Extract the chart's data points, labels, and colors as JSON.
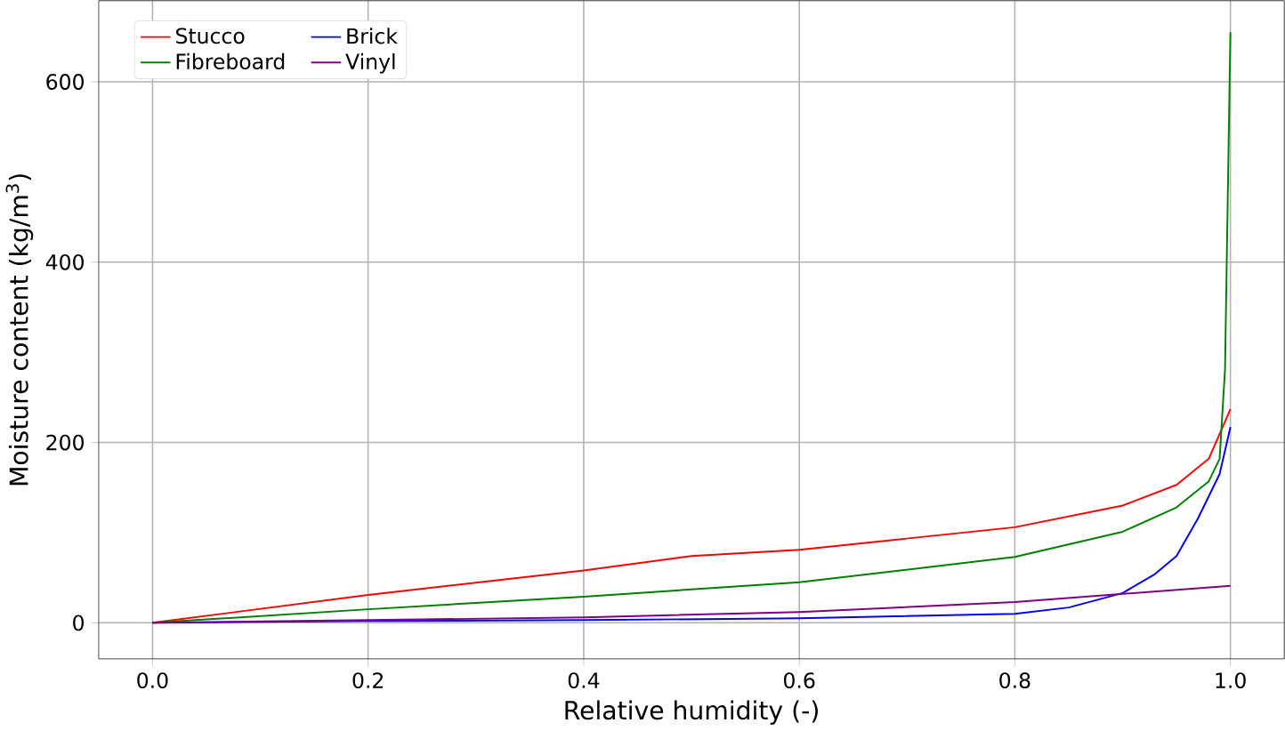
{
  "chart_data": {
    "type": "line",
    "xlabel": "Relative humidity (-)",
    "ylabel": "Moisture content (kg/m$^{3}$)",
    "xlim": [
      -0.05,
      1.05
    ],
    "ylim": [
      -40,
      690
    ],
    "xticks": [
      {
        "value": 0,
        "label": "0.0"
      },
      {
        "value": 0.2,
        "label": "0.2"
      },
      {
        "value": 0.4,
        "label": "0.4"
      },
      {
        "value": 0.6,
        "label": "0.6"
      },
      {
        "value": 0.8,
        "label": "0.8"
      },
      {
        "value": 1,
        "label": "1.0"
      }
    ],
    "yticks": [
      0,
      200,
      400,
      600
    ],
    "grid": true,
    "legend": "top left",
    "series": [
      {
        "name": "Stucco",
        "color": "#ff0000",
        "x": [
          0,
          0.2,
          0.4,
          0.5,
          0.6,
          0.8,
          0.9,
          0.95,
          0.98,
          1.0
        ],
        "values": [
          0,
          31,
          58,
          74,
          81,
          106,
          130,
          153,
          182,
          237
        ]
      },
      {
        "name": "Brick",
        "color": "#0000ff",
        "x": [
          0,
          0.2,
          0.4,
          0.6,
          0.8,
          0.85,
          0.9,
          0.93,
          0.95,
          0.97,
          0.99,
          1.0
        ],
        "values": [
          0,
          2,
          3,
          5,
          10,
          17,
          33,
          54,
          74,
          116,
          165,
          217
        ]
      },
      {
        "name": "Fibreboard",
        "color": "#008000",
        "x": [
          0,
          0.2,
          0.4,
          0.6,
          0.8,
          0.9,
          0.95,
          0.98,
          0.99,
          0.995,
          1.0
        ],
        "values": [
          0,
          15,
          29,
          45,
          73,
          101,
          128,
          157,
          182,
          281,
          655
        ]
      },
      {
        "name": "Vinyl",
        "color": "#800080",
        "x": [
          0,
          0.2,
          0.4,
          0.6,
          0.8,
          1.0
        ],
        "values": [
          0,
          3,
          6,
          12,
          23,
          41
        ]
      }
    ]
  }
}
